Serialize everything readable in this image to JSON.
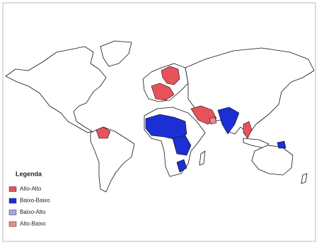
{
  "legend": {
    "title": "Legenda",
    "items": [
      {
        "label": "Alto-Alto",
        "color": "#e8525a"
      },
      {
        "label": "Baixo-Baixo",
        "color": "#1b2fd4"
      },
      {
        "label": "Baixo-Alto",
        "color": "#a8a2ea"
      },
      {
        "label": "Alto-Baixo",
        "color": "#ea8a8c"
      }
    ]
  }
}
